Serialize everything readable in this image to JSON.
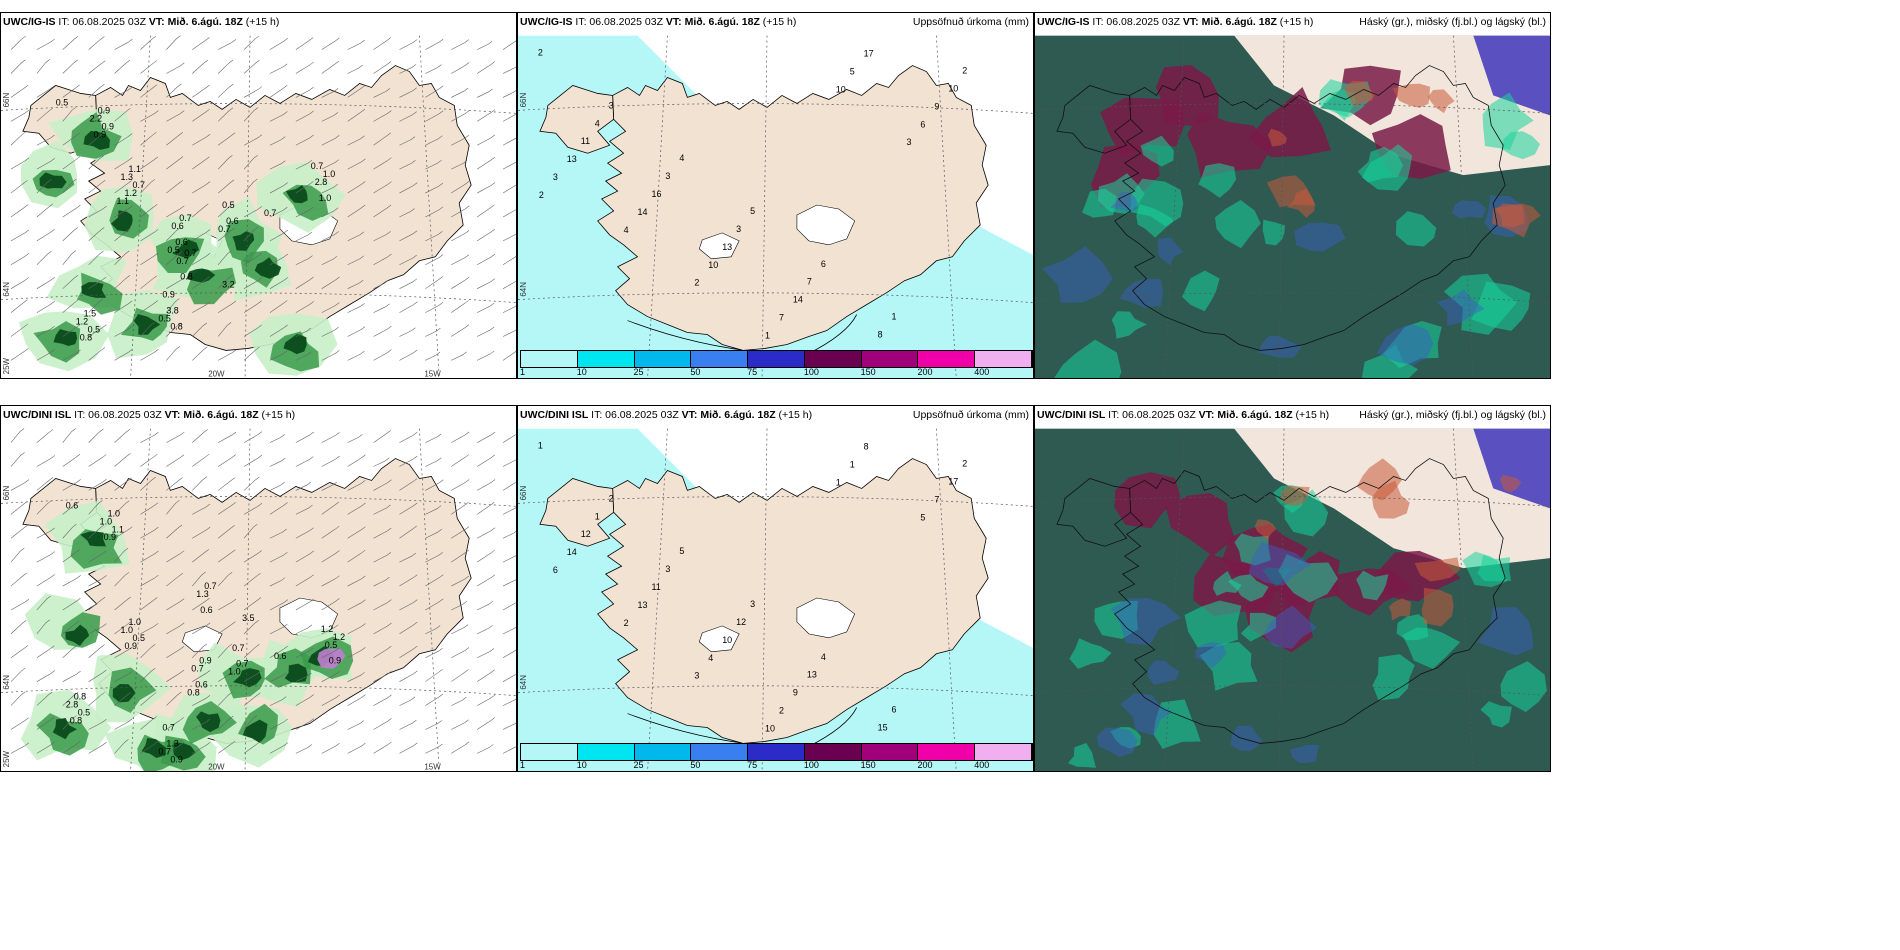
{
  "rows": [
    {
      "panels": [
        {
          "model": "UWC/IG-IS",
          "it": "IT: 06.08.2025 03Z",
          "vt_label": "VT:",
          "vt": "Mið. 6.ágú. 18Z",
          "lead": "(+15 h)",
          "right_title": ""
        },
        {
          "model": "UWC/IG-IS",
          "it": "IT: 06.08.2025 03Z",
          "vt_label": "VT:",
          "vt": "Mið. 6.ágú. 18Z",
          "lead": "(+15 h)",
          "right_title": "Uppsöfnuð úrkoma (mm)"
        },
        {
          "model": "UWC/IG-IS",
          "it": "IT: 06.08.2025 03Z",
          "vt_label": "VT:",
          "vt": "Mið. 6.ágú. 18Z",
          "lead": "(+15 h)",
          "right_title": "Háský (gr.), miðský (fj.bl.) og lágský (bl.)"
        }
      ]
    },
    {
      "panels": [
        {
          "model": "UWC/DINI ISL",
          "it": "IT: 06.08.2025 03Z",
          "vt_label": "VT:",
          "vt": "Mið. 6.ágú. 18Z",
          "lead": "(+15 h)",
          "right_title": ""
        },
        {
          "model": "UWC/DINI ISL",
          "it": "IT: 06.08.2025 03Z",
          "vt_label": "VT:",
          "vt": "Mið. 6.ágú. 18Z",
          "lead": "(+15 h)",
          "right_title": "Uppsöfnuð úrkoma (mm)"
        },
        {
          "model": "UWC/DINI ISL",
          "it": "IT: 06.08.2025 03Z",
          "vt_label": "VT:",
          "vt": "Mið. 6.ágú. 18Z",
          "lead": "(+15 h)",
          "right_title": "Háský (gr.), miðský (fj.bl.) og lágský (bl.)"
        }
      ]
    }
  ],
  "grid_labels": {
    "lat_66": "66N",
    "lat_64": "64N",
    "lon_25": "25W",
    "lon_20": "20W",
    "lon_15": "15W"
  },
  "precip_legend": {
    "ticks": [
      "1",
      "10",
      "25",
      "50",
      "75",
      "100",
      "150",
      "200",
      "400"
    ],
    "colors": [
      "#b5f7f7",
      "#00e6f0",
      "#00b8ec",
      "#3a7ff0",
      "#2b2bc8",
      "#6a0050",
      "#a0007a",
      "#f000a8",
      "#f0b0f0"
    ]
  },
  "colors": {
    "land": "#f2e2d2",
    "sea": "#ffffff",
    "precip_light": "#c8f0c8",
    "precip_mid": "#3a9a4a",
    "precip_dark": "#0a4a1a",
    "accum_cyan": "#b5f7f7",
    "cloud_base": "#2e5a52",
    "cloud_high": "#7a1a48",
    "cloud_mid": "#18d49a",
    "cloud_low": "#3a60c8"
  },
  "top_panel1_values": [
    "0.5",
    "0.7",
    "0.7",
    "0.6",
    "1.0",
    "0.8",
    "0.5",
    "0.7",
    "0.9",
    "1.1",
    "0.6",
    "0.5",
    "1.0",
    "3.8",
    "1.5",
    "0.8",
    "0.9",
    "1.2",
    "0.6",
    "0.7",
    "2.8",
    "0.9",
    "0.8",
    "0.7",
    "0.9",
    "1.3",
    "0.5",
    "0.7",
    "0.7",
    "0.5",
    "1.2",
    "3.2",
    "2.2",
    "1.1"
  ],
  "top_panel2_values": [
    "2",
    "3",
    "4",
    "5",
    "6",
    "1",
    "2",
    "4",
    "3",
    "3",
    "7",
    "8",
    "10",
    "11",
    "16",
    "13",
    "14",
    "17",
    "9",
    "13",
    "14",
    "10",
    "7",
    "5",
    "6",
    "3",
    "4",
    "2",
    "1",
    "10",
    "3",
    "2"
  ],
  "bottom_panel1_values": [
    "0.6",
    "0.5",
    "0.9",
    "0.7",
    "1.2",
    "0.9",
    "0.5",
    "0.7",
    "1.1",
    "1.0",
    "0.6",
    "0.7",
    "0.9",
    "1.3",
    "0.8",
    "0.6",
    "1.0",
    "0.9",
    "0.7",
    "1.0",
    "0.5",
    "0.7",
    "0.8",
    "1.3",
    "0.9",
    "1.0",
    "0.8",
    "0.6",
    "1.2",
    "0.7",
    "2.8",
    "3.5",
    "1.0"
  ],
  "bottom_panel2_values": [
    "1",
    "2",
    "5",
    "3",
    "4",
    "6",
    "2",
    "1",
    "3",
    "12",
    "13",
    "15",
    "17",
    "12",
    "11",
    "10",
    "9",
    "8",
    "7",
    "14",
    "13",
    "4",
    "2",
    "1",
    "5",
    "6",
    "2",
    "3",
    "10",
    "1"
  ]
}
